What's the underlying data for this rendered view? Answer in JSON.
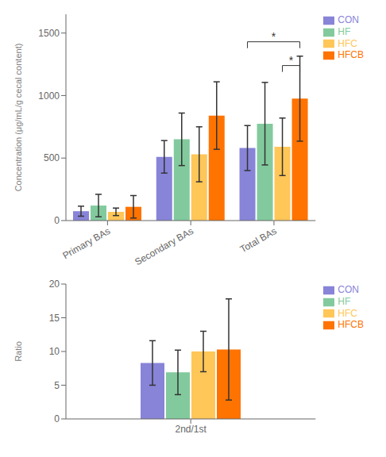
{
  "chart_data": [
    {
      "type": "bar",
      "categories": [
        "Primary BAs",
        "Secondary BAs",
        "Total BAs"
      ],
      "series": [
        {
          "name": "CON",
          "color": "#8884d8",
          "values": [
            75,
            510,
            580
          ],
          "errors": [
            40,
            130,
            180
          ]
        },
        {
          "name": "HF",
          "color": "#82ca9d",
          "values": [
            120,
            650,
            775
          ],
          "errors": [
            90,
            210,
            330
          ]
        },
        {
          "name": "HFC",
          "color": "#ffc658",
          "values": [
            70,
            530,
            590
          ],
          "errors": [
            30,
            220,
            230
          ]
        },
        {
          "name": "HFCB",
          "color": "#ff7300",
          "values": [
            110,
            840,
            975
          ],
          "errors": [
            90,
            270,
            340
          ]
        }
      ],
      "ylabel": "Concentration (μg/mL/g cecal content)",
      "ylim": [
        0,
        1650
      ],
      "yticks": [
        0,
        500,
        1000,
        1500
      ],
      "grid": false,
      "legend": "right",
      "annotations": [
        {
          "text": "*",
          "category": "Total BAs",
          "from": "CON",
          "to": "HFCB",
          "y": 1430
        },
        {
          "text": "*",
          "category": "Total BAs",
          "from": "HFC",
          "to": "HFCB",
          "y": 1240
        }
      ]
    },
    {
      "type": "bar",
      "categories": [
        "2nd/1st"
      ],
      "series": [
        {
          "name": "CON",
          "color": "#8884d8",
          "values": [
            8.3
          ],
          "errors": [
            3.3
          ]
        },
        {
          "name": "HF",
          "color": "#82ca9d",
          "values": [
            6.9
          ],
          "errors": [
            3.3
          ]
        },
        {
          "name": "HFC",
          "color": "#ffc658",
          "values": [
            10.0
          ],
          "errors": [
            3.0
          ]
        },
        {
          "name": "HFCB",
          "color": "#ff7300",
          "values": [
            10.3
          ],
          "errors": [
            7.5
          ]
        }
      ],
      "ylabel": "Ratio",
      "ylim": [
        0,
        20
      ],
      "yticks": [
        0,
        5,
        10,
        15,
        20
      ],
      "grid": false,
      "legend": "right"
    }
  ]
}
